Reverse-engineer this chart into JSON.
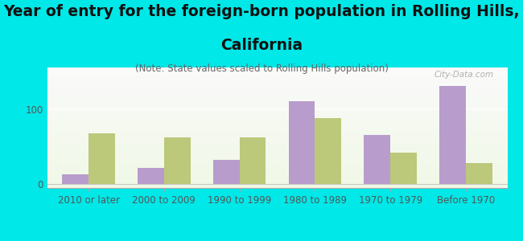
{
  "title_line1": "Year of entry for the foreign-born population in Rolling Hills,",
  "title_line2": "California",
  "subtitle": "(Note: State values scaled to Rolling Hills population)",
  "categories": [
    "2010 or later",
    "2000 to 2009",
    "1990 to 1999",
    "1980 to 1989",
    "1970 to 1979",
    "Before 1970"
  ],
  "rolling_hills": [
    13,
    22,
    32,
    110,
    65,
    130
  ],
  "california": [
    68,
    62,
    62,
    88,
    42,
    28
  ],
  "rolling_hills_color": "#b89ccc",
  "california_color": "#bcc87a",
  "background_color": "#00e8e8",
  "plot_bg_top": "#f0f8e8",
  "plot_bg_bottom": "#d8eed0",
  "yticks": [
    0,
    100
  ],
  "bar_width": 0.35,
  "watermark": "City-Data.com",
  "title_fontsize": 13.5,
  "subtitle_fontsize": 8.5,
  "legend_fontsize": 9.5,
  "tick_fontsize": 8.5
}
